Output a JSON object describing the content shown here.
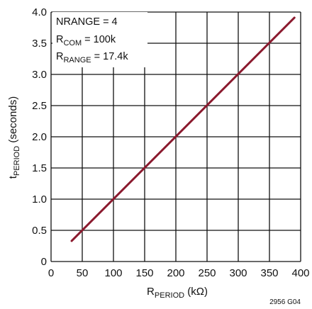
{
  "chart_data": {
    "type": "line",
    "x_ticks": [
      "0",
      "50",
      "100",
      "150",
      "200",
      "250",
      "300",
      "350",
      "400"
    ],
    "y_ticks": [
      "0",
      "0.5",
      "1.0",
      "1.5",
      "2.0",
      "2.5",
      "3.0",
      "3.5",
      "4.0"
    ],
    "xlim": [
      0,
      400
    ],
    "ylim": [
      0,
      4
    ],
    "grid": true,
    "xlabel": {
      "main": "R",
      "sub": "PERIOD",
      "rest": " (kΩ)"
    },
    "ylabel": {
      "main": "t",
      "sub": "PERIOD",
      "rest": " (seconds)"
    },
    "annotations": {
      "line1": "NRANGE = 4",
      "line2": {
        "main": "R",
        "sub": "COM",
        "rest": " = 100k"
      },
      "line3": {
        "main": "R",
        "sub": "RANGE",
        "rest": " = 17.4k"
      }
    },
    "series": [
      {
        "x": [
          33,
          390
        ],
        "y": [
          0.33,
          3.91
        ],
        "color": "#8b1a2e"
      }
    ],
    "figure_id": "2956 G04"
  }
}
